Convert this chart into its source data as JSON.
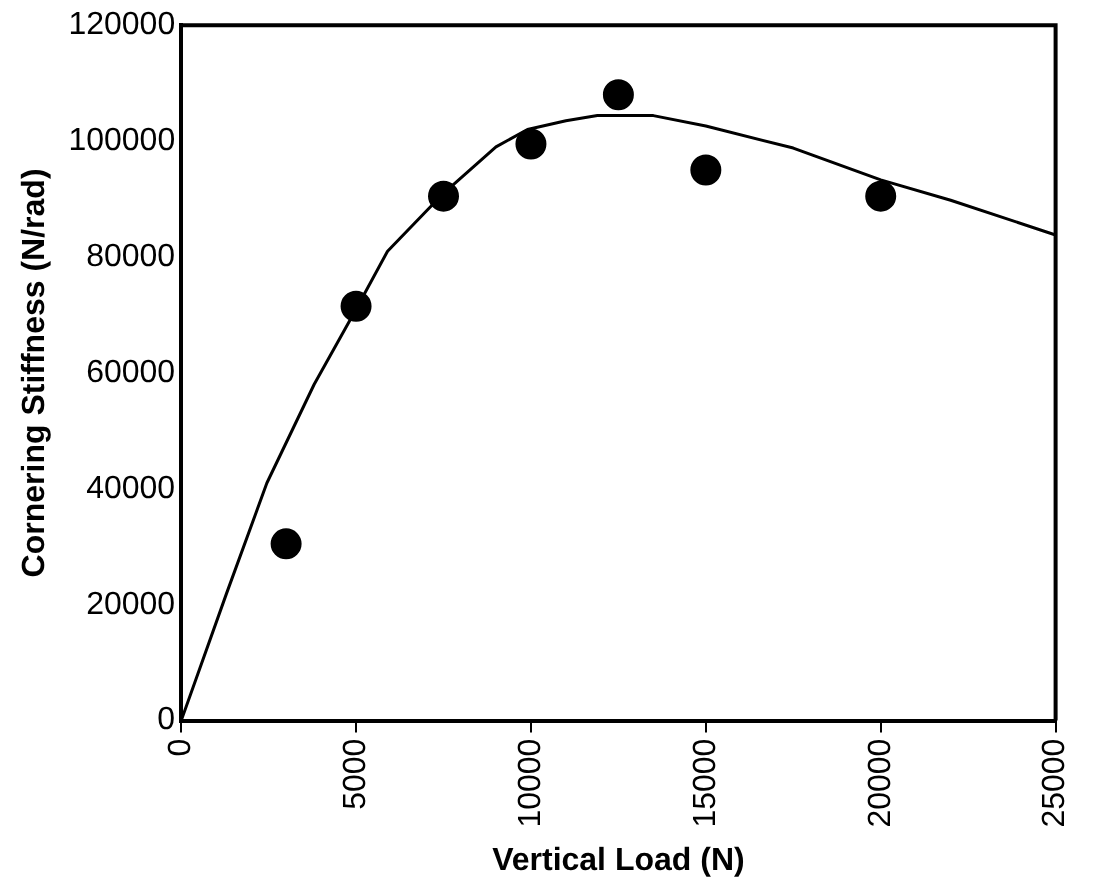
{
  "chart_data": {
    "type": "scatter",
    "xlabel": "Vertical Load (N)",
    "ylabel": "Cornering Stiffness (N/rad)",
    "xlim": [
      0,
      25000
    ],
    "xticks": [
      0,
      5000,
      10000,
      15000,
      20000,
      25000
    ],
    "ylim": [
      0,
      120000
    ],
    "yticks": [
      0,
      20000,
      40000,
      60000,
      80000,
      100000,
      120000
    ],
    "grid": false,
    "legend": false,
    "series": [
      {
        "color": "#000000",
        "marker": "circle",
        "x": [
          3000,
          5000,
          7500,
          10000,
          12500,
          15000,
          20000
        ],
        "values": [
          30500,
          71500,
          90500,
          99500,
          108000,
          95000,
          90500
        ]
      },
      {
        "type": "line",
        "color": "#000000",
        "marker": "none",
        "line_style": "solid",
        "x": [
          0,
          1300,
          2450,
          3800,
          5000,
          5900,
          7500,
          9000,
          9900,
          11000,
          11900,
          13500,
          15000,
          17500,
          20000,
          22000,
          25000
        ],
        "values": [
          0,
          22000,
          41000,
          58000,
          71000,
          81000,
          91000,
          99000,
          102000,
          103500,
          104400,
          104400,
          102600,
          98800,
          93300,
          89800,
          83800
        ]
      }
    ]
  }
}
